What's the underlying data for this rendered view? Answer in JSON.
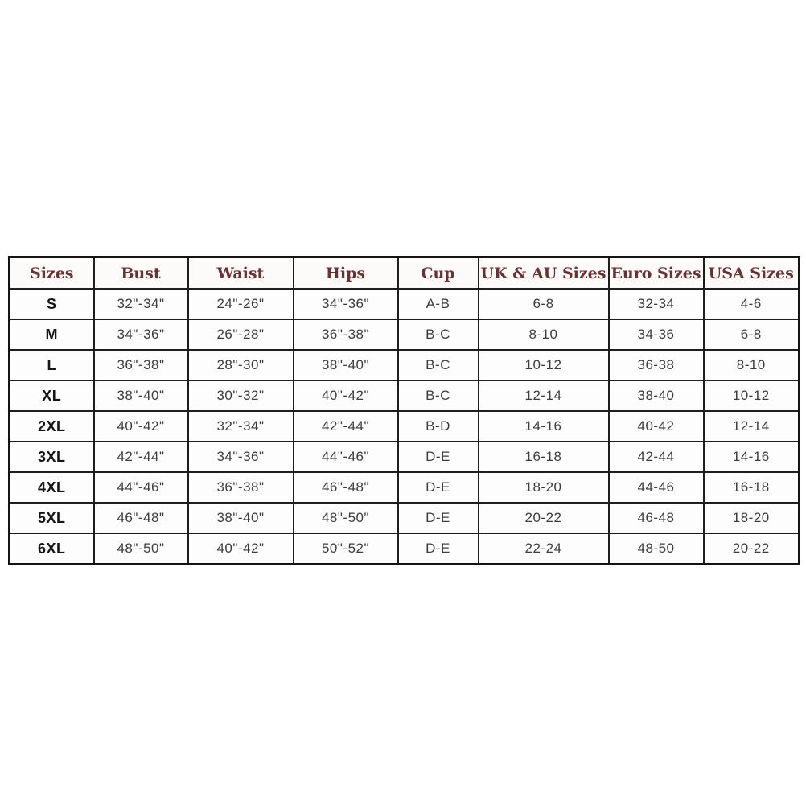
{
  "chart_data": {
    "type": "table",
    "columns": [
      "Sizes",
      "Bust",
      "Waist",
      "Hips",
      "Cup",
      "UK & AU Sizes",
      "Euro Sizes",
      "USA Sizes"
    ],
    "rows": [
      [
        "S",
        "32\"-34\"",
        "24\"-26\"",
        "34\"-36\"",
        "A-B",
        "6-8",
        "32-34",
        "4-6"
      ],
      [
        "M",
        "34\"-36\"",
        "26\"-28\"",
        "36\"-38\"",
        "B-C",
        "8-10",
        "34-36",
        "6-8"
      ],
      [
        "L",
        "36\"-38\"",
        "28\"-30\"",
        "38\"-40\"",
        "B-C",
        "10-12",
        "36-38",
        "8-10"
      ],
      [
        "XL",
        "38\"-40\"",
        "30\"-32\"",
        "40\"-42\"",
        "B-C",
        "12-14",
        "38-40",
        "10-12"
      ],
      [
        "2XL",
        "40\"-42\"",
        "32\"-34\"",
        "42\"-44\"",
        "B-D",
        "14-16",
        "40-42",
        "12-14"
      ],
      [
        "3XL",
        "42\"-44\"",
        "34\"-36\"",
        "44\"-46\"",
        "D-E",
        "16-18",
        "42-44",
        "14-16"
      ],
      [
        "4XL",
        "44\"-46\"",
        "36\"-38\"",
        "46\"-48\"",
        "D-E",
        "18-20",
        "44-46",
        "16-18"
      ],
      [
        "5XL",
        "46\"-48\"",
        "38\"-40\"",
        "48\"-50\"",
        "D-E",
        "20-22",
        "46-48",
        "18-20"
      ],
      [
        "6XL",
        "48\"-50\"",
        "40\"-42\"",
        "50\"-52\"",
        "D-E",
        "22-24",
        "48-50",
        "20-22"
      ]
    ],
    "layout": {
      "grid": true,
      "header_position": "top",
      "row_count": 9,
      "column_count": 8
    }
  },
  "colors": {
    "header_text": "#6b3232",
    "body_text": "#3d3d3d",
    "size_label_text": "#161616",
    "border": "#1e1e1e",
    "background": "#ffffff"
  }
}
